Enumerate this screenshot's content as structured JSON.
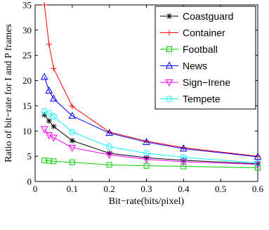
{
  "chart_data": {
    "type": "line",
    "title": "",
    "xlabel": "Bit−rate(bits/pixel)",
    "ylabel": "Ratio of bit−rate for I and P frames",
    "xlim": [
      0,
      0.6
    ],
    "ylim": [
      0,
      35
    ],
    "xticks": [
      0,
      0.1,
      0.2,
      0.3,
      0.4,
      0.5,
      0.6
    ],
    "xtick_labels": [
      "0",
      "0.1",
      "0.2",
      "0.3",
      "0.4",
      "0.5",
      "0.6"
    ],
    "yticks": [
      0,
      5,
      10,
      15,
      20,
      25,
      30,
      35
    ],
    "ytick_labels": [
      "0",
      "5",
      "10",
      "15",
      "20",
      "25",
      "30",
      "35"
    ],
    "grid": false,
    "legend_position": "top-right",
    "x": [
      0.025,
      0.0375,
      0.05,
      0.1,
      0.2,
      0.3,
      0.4,
      0.6
    ],
    "series": [
      {
        "name": "Coastguard",
        "color": "#000000",
        "marker": "asterisk",
        "values": [
          13.2,
          12.0,
          10.9,
          8.1,
          5.6,
          4.7,
          4.2,
          3.5
        ]
      },
      {
        "name": "Container",
        "color": "#ff0000",
        "marker": "plus",
        "values": [
          35.0,
          27.2,
          22.4,
          14.9,
          9.8,
          8.0,
          6.7,
          5.0
        ]
      },
      {
        "name": "Football",
        "color": "#00cc00",
        "marker": "square",
        "values": [
          4.2,
          4.1,
          4.0,
          3.8,
          3.3,
          3.1,
          3.0,
          2.7
        ]
      },
      {
        "name": "News",
        "color": "#0000ff",
        "marker": "triangle-up",
        "values": [
          20.7,
          18.0,
          16.4,
          13.0,
          9.6,
          7.8,
          6.5,
          4.9
        ]
      },
      {
        "name": "Sign−Irene",
        "color": "#ff00ff",
        "marker": "triangle-down",
        "values": [
          10.4,
          9.2,
          8.7,
          6.7,
          5.3,
          4.4,
          3.9,
          3.4
        ]
      },
      {
        "name": "Tempete",
        "color": "#00ffff",
        "marker": "circle",
        "values": [
          13.9,
          13.5,
          12.9,
          9.8,
          6.9,
          5.6,
          4.8,
          3.7
        ]
      }
    ]
  }
}
